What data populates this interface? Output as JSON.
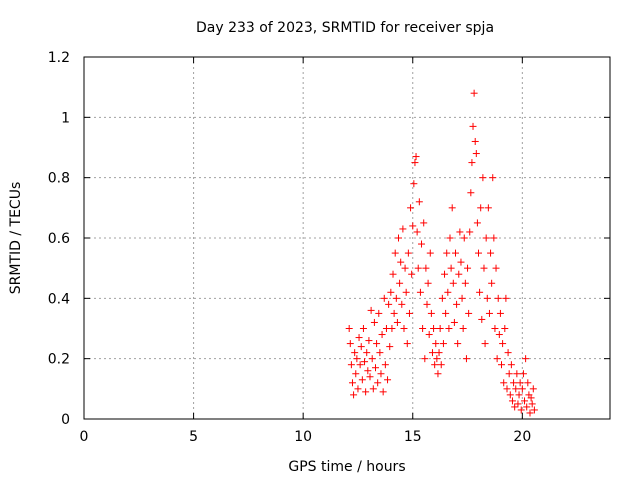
{
  "chart_data": {
    "type": "scatter",
    "title": "Day 233 of 2023, SRMTID for receiver spja",
    "xlabel": "GPS time / hours",
    "ylabel": "SRMTID / TECUs",
    "xlim": [
      0,
      24
    ],
    "ylim": [
      0,
      1.2
    ],
    "xticks": [
      0,
      5,
      10,
      15,
      20
    ],
    "yticks": [
      0,
      0.2,
      0.4,
      0.6,
      0.8,
      1,
      1.2
    ],
    "xtick_labels": [
      "0",
      "5",
      "10",
      "15",
      "20"
    ],
    "ytick_labels": [
      "0",
      "0.2",
      "0.4",
      "0.6",
      "0.8",
      "1",
      "1.2"
    ],
    "grid": true,
    "marker": "+",
    "color": "#ff0000",
    "series": [
      {
        "name": "SRMTID",
        "points": [
          [
            12.1,
            0.3
          ],
          [
            12.15,
            0.25
          ],
          [
            12.2,
            0.18
          ],
          [
            12.25,
            0.12
          ],
          [
            12.3,
            0.08
          ],
          [
            12.35,
            0.22
          ],
          [
            12.4,
            0.15
          ],
          [
            12.45,
            0.2
          ],
          [
            12.5,
            0.1
          ],
          [
            12.55,
            0.27
          ],
          [
            12.6,
            0.18
          ],
          [
            12.65,
            0.24
          ],
          [
            12.7,
            0.13
          ],
          [
            12.75,
            0.3
          ],
          [
            12.8,
            0.19
          ],
          [
            12.85,
            0.09
          ],
          [
            12.9,
            0.22
          ],
          [
            12.95,
            0.16
          ],
          [
            13.0,
            0.26
          ],
          [
            13.05,
            0.14
          ],
          [
            13.1,
            0.36
          ],
          [
            13.15,
            0.2
          ],
          [
            13.2,
            0.1
          ],
          [
            13.25,
            0.32
          ],
          [
            13.3,
            0.17
          ],
          [
            13.35,
            0.25
          ],
          [
            13.4,
            0.12
          ],
          [
            13.45,
            0.35
          ],
          [
            13.5,
            0.22
          ],
          [
            13.55,
            0.15
          ],
          [
            13.6,
            0.28
          ],
          [
            13.65,
            0.09
          ],
          [
            13.7,
            0.4
          ],
          [
            13.75,
            0.18
          ],
          [
            13.8,
            0.3
          ],
          [
            13.85,
            0.13
          ],
          [
            13.9,
            0.38
          ],
          [
            13.95,
            0.24
          ],
          [
            14.0,
            0.42
          ],
          [
            14.05,
            0.3
          ],
          [
            14.1,
            0.48
          ],
          [
            14.15,
            0.35
          ],
          [
            14.2,
            0.55
          ],
          [
            14.25,
            0.4
          ],
          [
            14.3,
            0.32
          ],
          [
            14.35,
            0.6
          ],
          [
            14.4,
            0.45
          ],
          [
            14.45,
            0.52
          ],
          [
            14.5,
            0.38
          ],
          [
            14.55,
            0.63
          ],
          [
            14.6,
            0.3
          ],
          [
            14.65,
            0.5
          ],
          [
            14.7,
            0.42
          ],
          [
            14.75,
            0.25
          ],
          [
            14.8,
            0.55
          ],
          [
            14.85,
            0.35
          ],
          [
            14.9,
            0.7
          ],
          [
            14.95,
            0.48
          ],
          [
            15.0,
            0.64
          ],
          [
            15.05,
            0.78
          ],
          [
            15.1,
            0.85
          ],
          [
            15.15,
            0.87
          ],
          [
            15.2,
            0.62
          ],
          [
            15.25,
            0.5
          ],
          [
            15.3,
            0.72
          ],
          [
            15.35,
            0.42
          ],
          [
            15.4,
            0.58
          ],
          [
            15.45,
            0.3
          ],
          [
            15.5,
            0.65
          ],
          [
            15.55,
            0.2
          ],
          [
            15.6,
            0.5
          ],
          [
            15.65,
            0.38
          ],
          [
            15.7,
            0.45
          ],
          [
            15.75,
            0.28
          ],
          [
            15.8,
            0.55
          ],
          [
            15.85,
            0.35
          ],
          [
            15.9,
            0.22
          ],
          [
            15.95,
            0.3
          ],
          [
            16.0,
            0.18
          ],
          [
            16.05,
            0.25
          ],
          [
            16.1,
            0.2
          ],
          [
            16.15,
            0.15
          ],
          [
            16.2,
            0.22
          ],
          [
            16.25,
            0.3
          ],
          [
            16.3,
            0.18
          ],
          [
            16.35,
            0.4
          ],
          [
            16.4,
            0.25
          ],
          [
            16.45,
            0.48
          ],
          [
            16.5,
            0.35
          ],
          [
            16.55,
            0.55
          ],
          [
            16.6,
            0.42
          ],
          [
            16.65,
            0.3
          ],
          [
            16.7,
            0.6
          ],
          [
            16.75,
            0.5
          ],
          [
            16.8,
            0.7
          ],
          [
            16.85,
            0.45
          ],
          [
            16.9,
            0.32
          ],
          [
            16.95,
            0.55
          ],
          [
            17.0,
            0.38
          ],
          [
            17.05,
            0.25
          ],
          [
            17.1,
            0.48
          ],
          [
            17.15,
            0.62
          ],
          [
            17.2,
            0.52
          ],
          [
            17.25,
            0.4
          ],
          [
            17.3,
            0.3
          ],
          [
            17.35,
            0.6
          ],
          [
            17.4,
            0.45
          ],
          [
            17.45,
            0.2
          ],
          [
            17.5,
            0.5
          ],
          [
            17.55,
            0.35
          ],
          [
            17.6,
            0.62
          ],
          [
            17.65,
            0.75
          ],
          [
            17.7,
            0.85
          ],
          [
            17.75,
            0.97
          ],
          [
            17.8,
            1.08
          ],
          [
            17.85,
            0.92
          ],
          [
            17.9,
            0.88
          ],
          [
            17.95,
            0.65
          ],
          [
            18.0,
            0.55
          ],
          [
            18.05,
            0.42
          ],
          [
            18.1,
            0.7
          ],
          [
            18.15,
            0.33
          ],
          [
            18.2,
            0.8
          ],
          [
            18.25,
            0.5
          ],
          [
            18.3,
            0.25
          ],
          [
            18.35,
            0.6
          ],
          [
            18.4,
            0.4
          ],
          [
            18.45,
            0.7
          ],
          [
            18.5,
            0.35
          ],
          [
            18.55,
            0.55
          ],
          [
            18.6,
            0.45
          ],
          [
            18.65,
            0.8
          ],
          [
            18.7,
            0.6
          ],
          [
            18.75,
            0.3
          ],
          [
            18.8,
            0.5
          ],
          [
            18.85,
            0.2
          ],
          [
            18.9,
            0.4
          ],
          [
            18.95,
            0.28
          ],
          [
            19.0,
            0.35
          ],
          [
            19.05,
            0.18
          ],
          [
            19.1,
            0.25
          ],
          [
            19.15,
            0.12
          ],
          [
            19.2,
            0.3
          ],
          [
            19.25,
            0.4
          ],
          [
            19.3,
            0.1
          ],
          [
            19.35,
            0.22
          ],
          [
            19.4,
            0.15
          ],
          [
            19.45,
            0.08
          ],
          [
            19.5,
            0.18
          ],
          [
            19.55,
            0.06
          ],
          [
            19.6,
            0.12
          ],
          [
            19.65,
            0.04
          ],
          [
            19.7,
            0.1
          ],
          [
            19.75,
            0.15
          ],
          [
            19.8,
            0.05
          ],
          [
            19.85,
            0.08
          ],
          [
            19.9,
            0.12
          ],
          [
            19.95,
            0.03
          ],
          [
            20.0,
            0.1
          ],
          [
            20.05,
            0.15
          ],
          [
            20.1,
            0.06
          ],
          [
            20.15,
            0.2
          ],
          [
            20.2,
            0.04
          ],
          [
            20.25,
            0.12
          ],
          [
            20.3,
            0.08
          ],
          [
            20.35,
            0.02
          ],
          [
            20.4,
            0.07
          ],
          [
            20.45,
            0.05
          ],
          [
            20.5,
            0.1
          ],
          [
            20.55,
            0.03
          ]
        ]
      }
    ]
  }
}
